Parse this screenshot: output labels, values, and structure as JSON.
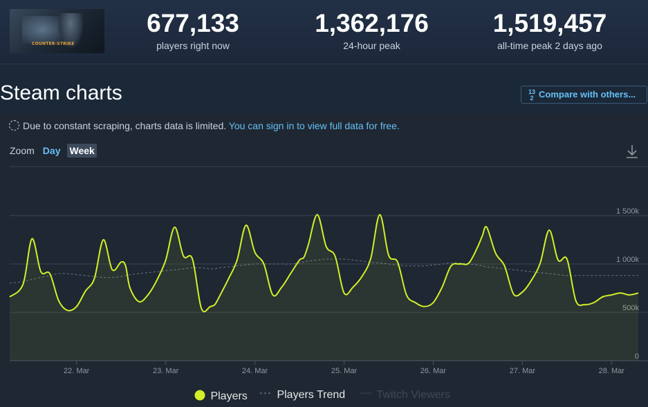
{
  "header": {
    "logo_text": "COUNTER-STRIKE",
    "stats": [
      {
        "value": "677,133",
        "label": "players right now"
      },
      {
        "value": "1,362,176",
        "label": "24-hour peak"
      },
      {
        "value": "1,519,457",
        "label": "all-time peak 2 days ago"
      }
    ]
  },
  "page_title": "Steam charts",
  "compare_button": {
    "fraction_top": "1",
    "fraction_bottom": "2",
    "fraction_side": "3",
    "label": "Compare with others..."
  },
  "notice": {
    "text": "Due to constant scraping, charts data is limited.",
    "link": "You can sign in to view full data for free."
  },
  "zoom": {
    "label": "Zoom",
    "day": "Day",
    "week": "Week"
  },
  "colors": {
    "players": "#d2f028",
    "trend": "#5d6b78",
    "twitch": "#3a4552",
    "grid": "#39434f"
  },
  "legend": {
    "players": "Players",
    "trend": "Players Trend",
    "twitch": "Twitch Viewers"
  },
  "chart_data": {
    "type": "line",
    "x": [
      "21.25",
      "21.4",
      "21.5",
      "21.6",
      "21.7",
      "21.8",
      "21.9",
      "22.0",
      "22.1",
      "22.2",
      "22.3",
      "22.4",
      "22.5",
      "22.55",
      "22.6",
      "22.7",
      "22.8",
      "22.9",
      "23.0",
      "23.1",
      "23.2",
      "23.3",
      "23.4",
      "23.5",
      "23.55",
      "23.6",
      "23.7",
      "23.8",
      "23.9",
      "24.0",
      "24.1",
      "24.2",
      "24.3",
      "24.4",
      "24.5",
      "24.55",
      "24.6",
      "24.7",
      "24.8",
      "24.9",
      "25.0",
      "25.1",
      "25.2",
      "25.3",
      "25.4",
      "25.5",
      "25.6",
      "25.7",
      "25.8",
      "25.9",
      "26.0",
      "26.1",
      "26.2",
      "26.3",
      "26.4",
      "26.5",
      "26.55",
      "26.6",
      "26.7",
      "26.8",
      "26.9",
      "27.0",
      "27.1",
      "27.2",
      "27.3",
      "27.4",
      "27.5",
      "27.6",
      "27.7",
      "27.8",
      "27.9",
      "28.0",
      "28.1",
      "28.2",
      "28.3"
    ],
    "xticks": [
      "22. Mar",
      "23. Mar",
      "24. Mar",
      "25. Mar",
      "26. Mar",
      "27. Mar",
      "28. Mar"
    ],
    "yticks": [
      "0",
      "500k",
      "1 000k",
      "1 500k"
    ],
    "ylim": [
      0,
      1500000
    ],
    "series": [
      {
        "name": "Players",
        "values": [
          660000,
          790000,
          1260000,
          920000,
          900000,
          620000,
          520000,
          560000,
          720000,
          850000,
          1250000,
          940000,
          1020000,
          980000,
          750000,
          610000,
          680000,
          830000,
          1040000,
          1380000,
          1080000,
          1050000,
          540000,
          560000,
          580000,
          660000,
          840000,
          1040000,
          1400000,
          1120000,
          1000000,
          680000,
          760000,
          900000,
          1040000,
          1070000,
          1200000,
          1510000,
          1180000,
          1080000,
          700000,
          760000,
          870000,
          1060000,
          1510000,
          1090000,
          1020000,
          680000,
          600000,
          560000,
          600000,
          760000,
          980000,
          1000000,
          1010000,
          1180000,
          1290000,
          1380000,
          1110000,
          980000,
          690000,
          710000,
          830000,
          1010000,
          1350000,
          1040000,
          1050000,
          620000,
          580000,
          600000,
          660000,
          680000,
          700000,
          680000,
          700000
        ]
      },
      {
        "name": "Players Trend",
        "values": [
          800000,
          820000,
          840000,
          860000,
          880000,
          900000,
          900000,
          890000,
          880000,
          870000,
          860000,
          860000,
          870000,
          880000,
          890000,
          900000,
          910000,
          920000,
          930000,
          940000,
          950000,
          960000,
          960000,
          950000,
          950000,
          960000,
          970000,
          980000,
          990000,
          1000000,
          1000000,
          1000000,
          1000000,
          1000000,
          1010000,
          1020000,
          1030000,
          1040000,
          1050000,
          1050000,
          1050000,
          1040000,
          1030000,
          1020000,
          1010000,
          1000000,
          990000,
          980000,
          980000,
          980000,
          990000,
          1000000,
          1010000,
          1010000,
          1000000,
          990000,
          980000,
          970000,
          960000,
          950000,
          940000,
          930000,
          920000,
          910000,
          900000,
          890000,
          880000,
          880000,
          880000,
          880000,
          880000,
          880000,
          880000,
          880000,
          880000
        ]
      }
    ]
  }
}
